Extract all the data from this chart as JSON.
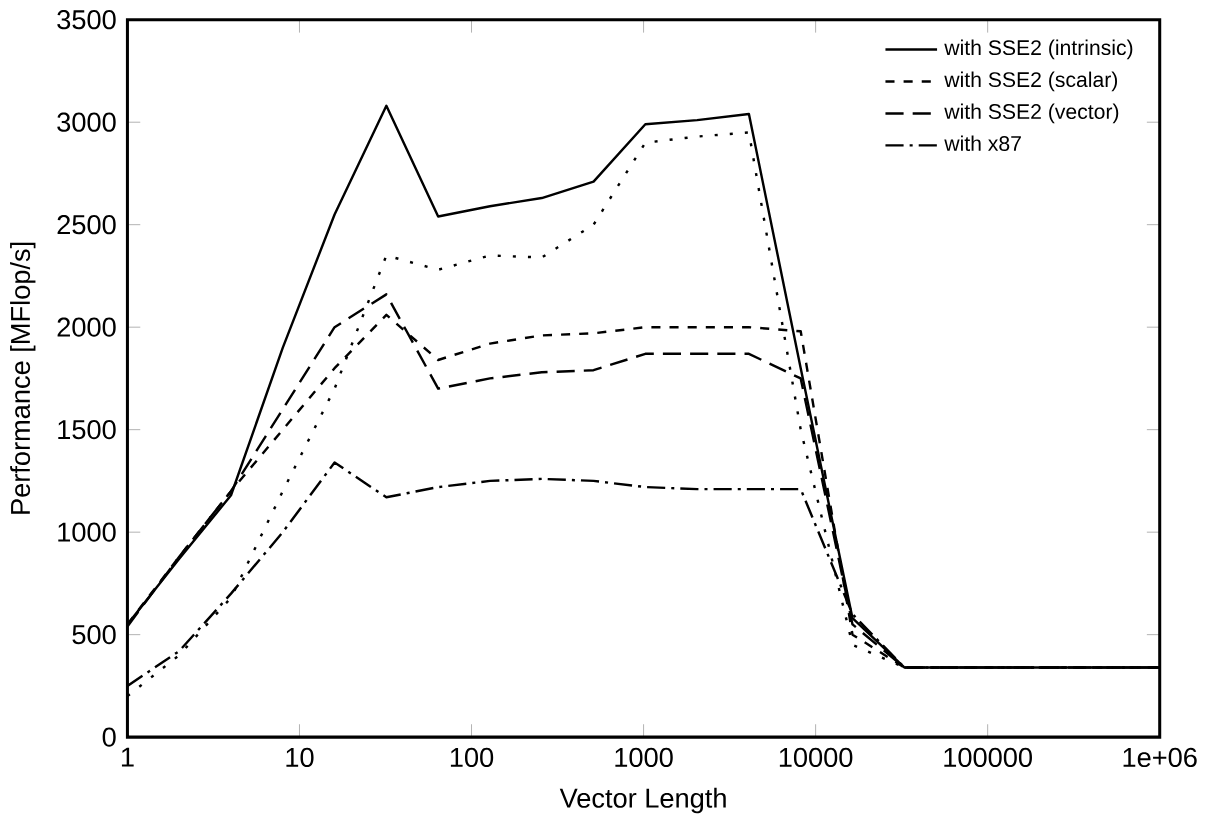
{
  "chart_data": {
    "type": "line",
    "xlabel": "Vector Length",
    "ylabel": "Performance [MFlop/s]",
    "log": "x",
    "x": [
      1,
      2,
      4,
      8,
      16,
      32,
      64,
      128,
      256,
      512,
      1024,
      2048,
      4096,
      8192,
      16384,
      32768,
      65536,
      131072,
      262144,
      524288,
      1000000
    ],
    "series": [
      {
        "name": "with SSE2 (intrinsic)",
        "color": "#000000",
        "line_style": "solid",
        "values": [
          550,
          870,
          1180,
          1900,
          2550,
          3080,
          2540,
          2590,
          2630,
          2710,
          2990,
          3010,
          3040,
          1800,
          580,
          340,
          340,
          340,
          340,
          340,
          340
        ]
      },
      {
        "color": "#000000",
        "line_style": "dotted",
        "values": [
          200,
          400,
          680,
          1200,
          1700,
          2350,
          2280,
          2350,
          2340,
          2500,
          2900,
          2930,
          2950,
          1500,
          450,
          340,
          340,
          340,
          340,
          340,
          340
        ]
      },
      {
        "name": "with SSE2 (scalar)",
        "color": "#000000",
        "line_style": "dashed",
        "values": [
          550,
          880,
          1200,
          1500,
          1800,
          2060,
          1840,
          1920,
          1960,
          1970,
          2000,
          2000,
          2000,
          1980,
          500,
          340,
          340,
          340,
          340,
          340,
          340
        ]
      },
      {
        "name": "with SSE2 (vector)",
        "color": "#000000",
        "line_style": "long dashed",
        "values": [
          540,
          880,
          1200,
          1600,
          2000,
          2160,
          1700,
          1750,
          1780,
          1790,
          1870,
          1870,
          1870,
          1750,
          550,
          340,
          340,
          340,
          340,
          340,
          340
        ]
      },
      {
        "name": "with x87",
        "color": "#000000",
        "line_style": "dash dot",
        "values": [
          250,
          420,
          700,
          1000,
          1340,
          1170,
          1220,
          1250,
          1260,
          1250,
          1220,
          1210,
          1210,
          1210,
          600,
          340,
          340,
          340,
          340,
          340,
          340
        ]
      }
    ],
    "xlim": [
      1,
      1000000
    ],
    "ylim": [
      0,
      3500
    ],
    "xticks": [
      1,
      10,
      100,
      1000,
      10000,
      100000,
      {
        "value": 1000000,
        "label": "1e+06"
      }
    ],
    "yticks": [
      0,
      500,
      1000,
      1500,
      2000,
      2500,
      3000,
      3500
    ],
    "grid": false,
    "legend": "top right",
    "marker": "none"
  }
}
